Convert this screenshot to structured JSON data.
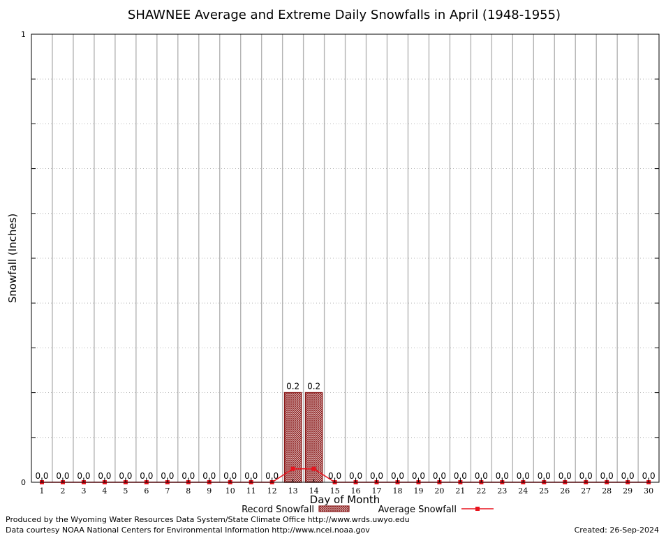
{
  "chart_data": {
    "type": "bar",
    "title": "SHAWNEE Average and Extreme Daily Snowfalls in April (1948-1955)",
    "xlabel": "Day of Month",
    "ylabel": "Snowfall (Inches)",
    "ylim": [
      0,
      1
    ],
    "yticks": [
      "0",
      "1"
    ],
    "categories": [
      "1",
      "2",
      "3",
      "4",
      "5",
      "6",
      "7",
      "8",
      "9",
      "10",
      "11",
      "12",
      "13",
      "14",
      "15",
      "16",
      "17",
      "18",
      "19",
      "20",
      "21",
      "22",
      "23",
      "24",
      "25",
      "26",
      "27",
      "28",
      "29",
      "30"
    ],
    "series": [
      {
        "name": "Record Snowfall",
        "kind": "bar",
        "color": "#8b1a1a",
        "values": [
          0,
          0,
          0,
          0,
          0,
          0,
          0,
          0,
          0,
          0,
          0,
          0,
          0.2,
          0.2,
          0,
          0,
          0,
          0,
          0,
          0,
          0,
          0,
          0,
          0,
          0,
          0,
          0,
          0,
          0,
          0
        ],
        "labels": [
          "0.0",
          "0.0",
          "0.0",
          "0.0",
          "0.0",
          "0.0",
          "0.0",
          "0.0",
          "0.0",
          "0.0",
          "0.0",
          "0.0",
          "0.2",
          "0.2",
          "0.0",
          "0.0",
          "0.0",
          "0.0",
          "0.0",
          "0.0",
          "0.0",
          "0.0",
          "0.0",
          "0.0",
          "0.0",
          "0.0",
          "0.0",
          "0.0",
          "0.0",
          "0.0"
        ]
      },
      {
        "name": "Average Snowfall",
        "kind": "line",
        "color": "#e8141e",
        "values": [
          0,
          0,
          0,
          0,
          0,
          0,
          0,
          0,
          0,
          0,
          0,
          0,
          0.03,
          0.03,
          0,
          0,
          0,
          0,
          0,
          0,
          0,
          0,
          0,
          0,
          0,
          0,
          0,
          0,
          0,
          0
        ]
      }
    ],
    "grid": true,
    "legend_position": "bottom-center"
  },
  "footer": {
    "line1": "Produced by the Wyoming Water Resources Data System/State Climate Office http://www.wrds.uwyo.edu",
    "line2": "Data courtesy NOAA National Centers for Environmental Information http://www.ncei.noaa.gov",
    "created": "Created:  26-Sep-2024"
  }
}
